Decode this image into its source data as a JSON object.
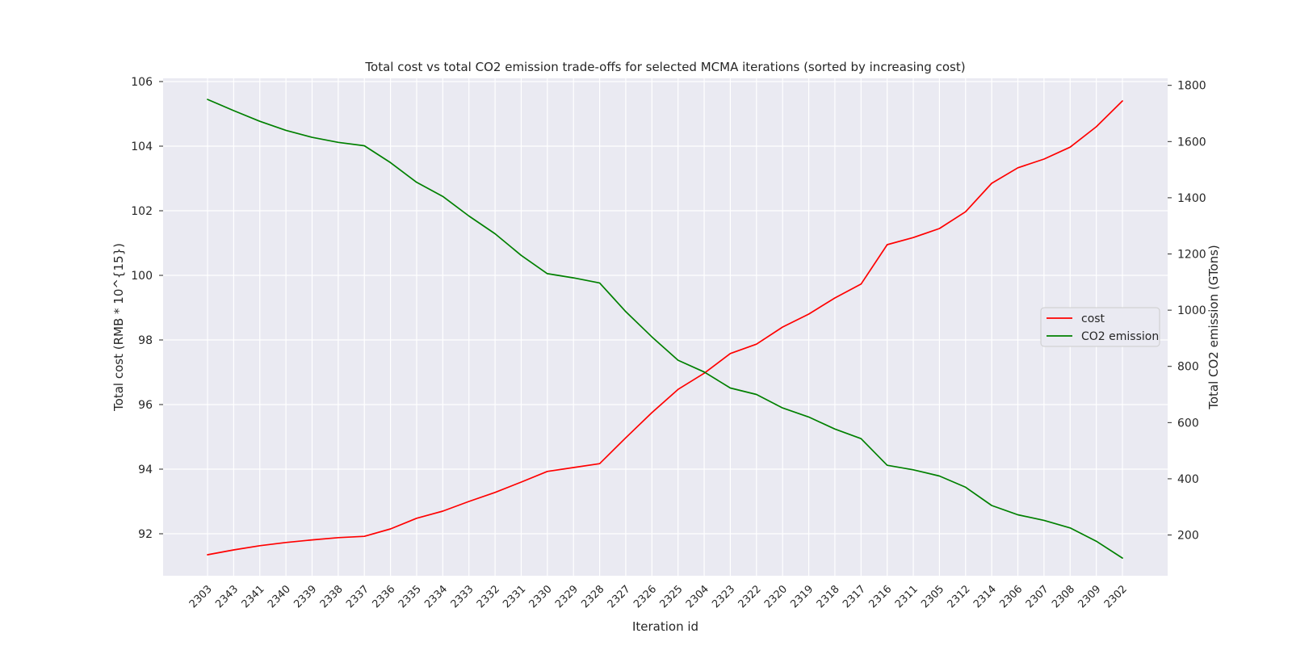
{
  "chart_data": {
    "type": "line",
    "title": "Total cost vs total CO2 emission trade-offs for selected MCMA iterations (sorted by increasing cost)",
    "xlabel": "Iteration id",
    "ylabel": "Total cost  (RMB * 10^{15})",
    "y2label": "Total CO2 emission (GTons)",
    "categories": [
      "2303",
      "2343",
      "2341",
      "2340",
      "2339",
      "2338",
      "2337",
      "2336",
      "2335",
      "2334",
      "2333",
      "2332",
      "2331",
      "2330",
      "2329",
      "2328",
      "2327",
      "2326",
      "2325",
      "2304",
      "2323",
      "2322",
      "2320",
      "2319",
      "2318",
      "2317",
      "2316",
      "2311",
      "2305",
      "2312",
      "2314",
      "2306",
      "2307",
      "2308",
      "2309",
      "2302"
    ],
    "ylim": [
      90.7,
      106.1
    ],
    "y2lim": [
      55,
      1825
    ],
    "yticks": [
      92,
      94,
      96,
      98,
      100,
      102,
      104,
      106
    ],
    "y2ticks": [
      200,
      400,
      600,
      800,
      1000,
      1200,
      1400,
      1600,
      1800
    ],
    "grid": true,
    "legend_position": "right",
    "series": [
      {
        "name": "cost",
        "axis": "left",
        "color": "#ff0000",
        "values": [
          91.35,
          91.5,
          91.63,
          91.73,
          91.81,
          91.88,
          91.92,
          92.15,
          92.48,
          92.7,
          93.0,
          93.28,
          93.6,
          93.93,
          94.05,
          94.17,
          94.97,
          95.75,
          96.47,
          96.97,
          97.58,
          97.87,
          98.4,
          98.8,
          99.3,
          99.73,
          100.95,
          101.17,
          101.45,
          101.97,
          102.85,
          103.33,
          103.6,
          103.97,
          104.6,
          105.4
        ]
      },
      {
        "name": "CO2 emission",
        "axis": "right",
        "color": "#008000",
        "values": [
          1750,
          1710,
          1672,
          1640,
          1615,
          1597,
          1585,
          1525,
          1455,
          1405,
          1335,
          1272,
          1195,
          1130,
          1115,
          1097,
          995,
          905,
          822,
          780,
          723,
          700,
          652,
          620,
          577,
          543,
          448,
          432,
          410,
          370,
          305,
          272,
          252,
          225,
          178,
          118
        ]
      }
    ]
  }
}
